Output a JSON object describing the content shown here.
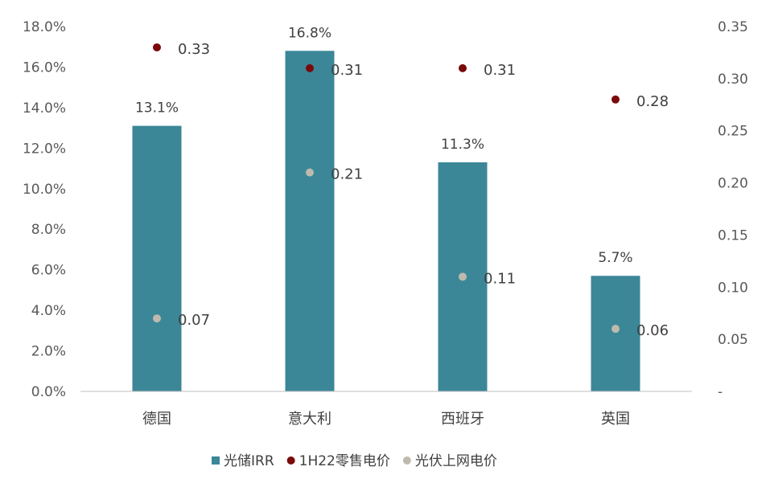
{
  "chart_data": {
    "type": "bar",
    "categories": [
      "德国",
      "意大利",
      "西班牙",
      "英国"
    ],
    "series": [
      {
        "name": "光储IRR",
        "type": "bar",
        "axis": "left",
        "values": [
          0.131,
          0.168,
          0.113,
          0.057
        ],
        "labels": [
          "13.1%",
          "16.8%",
          "11.3%",
          "5.7%"
        ],
        "color": "#3B8798"
      },
      {
        "name": "1H22零售电价",
        "type": "scatter",
        "axis": "right",
        "values": [
          0.33,
          0.31,
          0.31,
          0.28
        ],
        "labels": [
          "0.33",
          "0.31",
          "0.31",
          "0.28"
        ],
        "color": "#7A0A0A"
      },
      {
        "name": "光伏上网电价",
        "type": "scatter",
        "axis": "right",
        "values": [
          0.07,
          0.21,
          0.11,
          0.06
        ],
        "labels": [
          "0.07",
          "0.21",
          "0.11",
          "0.06"
        ],
        "color": "#BFBAAE"
      }
    ],
    "left_axis": {
      "ylim": [
        0,
        0.18
      ],
      "ticks": [
        0,
        0.02,
        0.04,
        0.06,
        0.08,
        0.1,
        0.12,
        0.14,
        0.16,
        0.18
      ],
      "tick_labels": [
        "0.0%",
        "2.0%",
        "4.0%",
        "6.0%",
        "8.0%",
        "10.0%",
        "12.0%",
        "14.0%",
        "16.0%",
        "18.0%"
      ]
    },
    "right_axis": {
      "ylim": [
        0,
        0.35
      ],
      "ticks": [
        0,
        0.05,
        0.1,
        0.15,
        0.2,
        0.25,
        0.3,
        0.35
      ],
      "tick_labels": [
        "-",
        "0.05",
        "0.10",
        "0.15",
        "0.20",
        "0.25",
        "0.30",
        "0.35"
      ]
    },
    "grid": false,
    "legend_position": "bottom"
  }
}
